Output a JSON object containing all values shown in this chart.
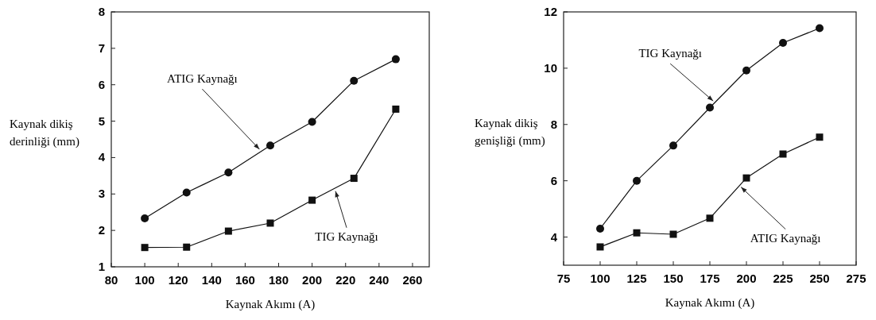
{
  "chart_data": [
    {
      "type": "line",
      "xlabel": "Kaynak Akımı (A)",
      "ylabel": "Kaynak dikiş\nderinliği (mm)",
      "x": [
        100,
        125,
        150,
        175,
        200,
        225,
        250
      ],
      "xlim": [
        80,
        270
      ],
      "xticks": [
        80,
        100,
        120,
        140,
        160,
        180,
        200,
        220,
        240,
        260
      ],
      "ylim": [
        1,
        8
      ],
      "yticks": [
        1,
        2,
        3,
        4,
        5,
        6,
        7,
        8
      ],
      "grid": false,
      "line_style": "solid",
      "series": [
        {
          "name": "ATIG Kaynağı",
          "color": "#111111",
          "marker": "circle",
          "values": [
            2.33,
            3.04,
            3.59,
            4.33,
            4.98,
            6.11,
            6.7
          ]
        },
        {
          "name": "TIG Kaynağı",
          "color": "#111111",
          "marker": "square",
          "values": [
            1.53,
            1.54,
            1.98,
            2.2,
            2.83,
            3.43,
            5.33
          ]
        }
      ]
    },
    {
      "type": "line",
      "xlabel": "Kaynak Akımı (A)",
      "ylabel": "Kaynak dikiş\ngenişliği (mm)",
      "x": [
        100,
        125,
        150,
        175,
        200,
        225,
        250
      ],
      "xlim": [
        75,
        275
      ],
      "xticks": [
        75,
        100,
        125,
        150,
        175,
        200,
        225,
        250,
        275
      ],
      "ylim": [
        3,
        12
      ],
      "yticks": [
        4,
        6,
        8,
        10,
        12
      ],
      "grid": false,
      "line_style": "solid",
      "series": [
        {
          "name": "TIG Kaynağı",
          "color": "#111111",
          "marker": "circle",
          "values": [
            4.3,
            6.0,
            7.25,
            8.6,
            9.92,
            10.9,
            11.42
          ]
        },
        {
          "name": "ATIG Kaynağı",
          "color": "#111111",
          "marker": "square",
          "values": [
            3.65,
            4.15,
            4.1,
            4.67,
            6.1,
            6.95,
            7.55
          ]
        }
      ]
    }
  ]
}
